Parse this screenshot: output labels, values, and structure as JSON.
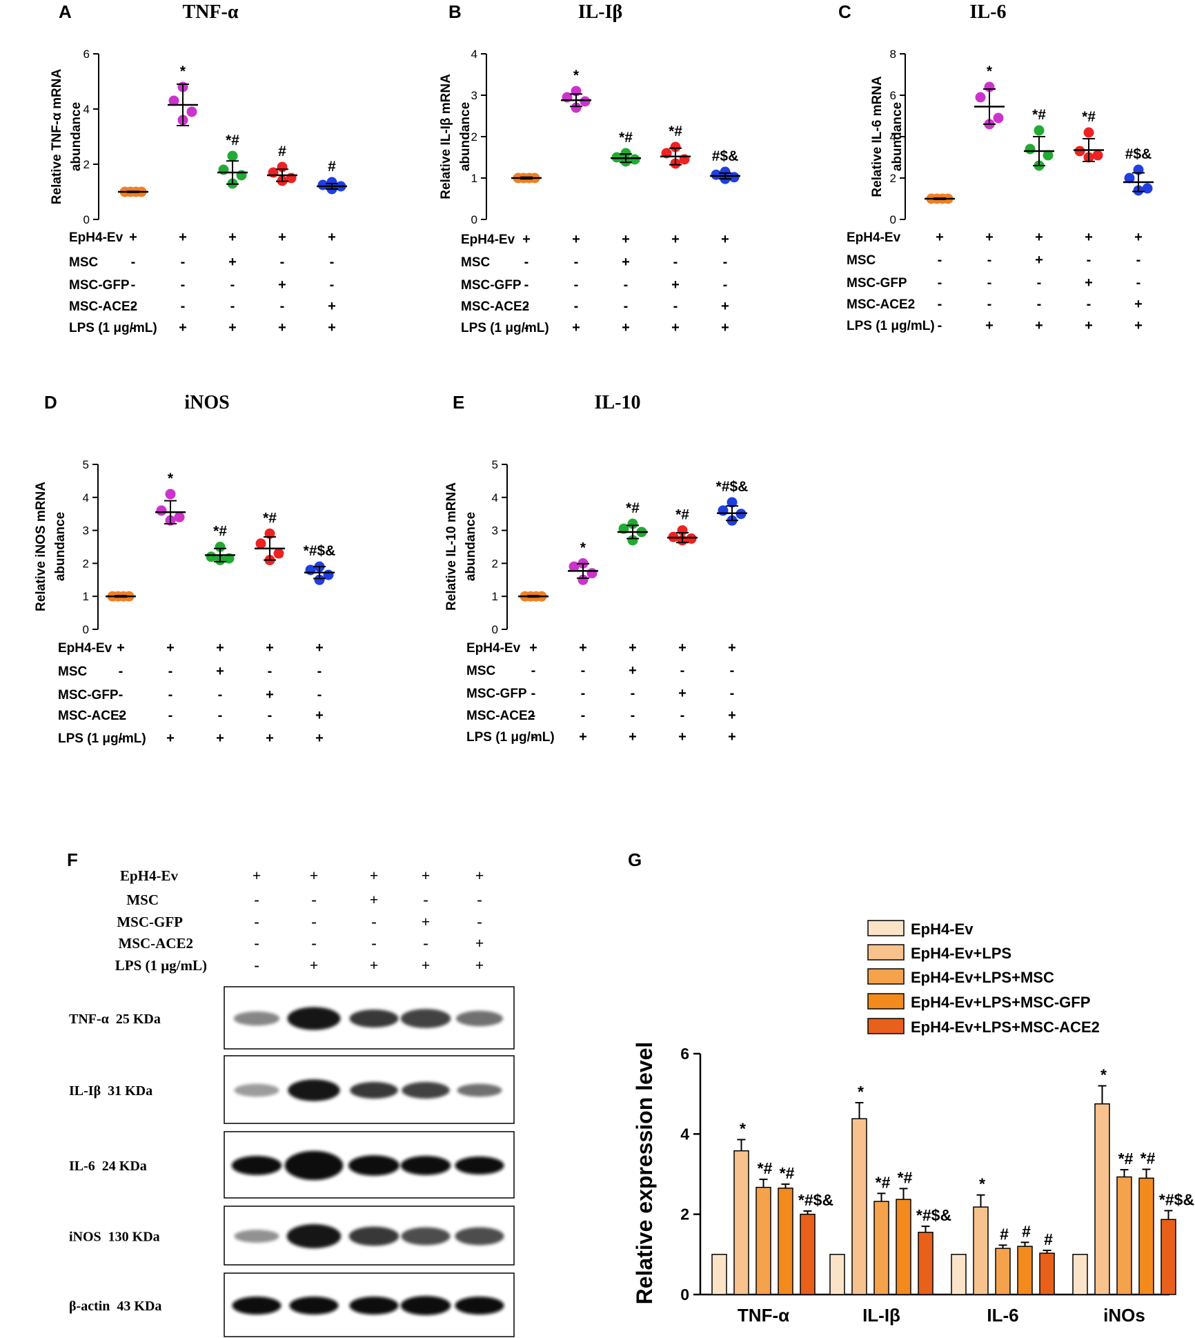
{
  "colors": {
    "ctrl": "#F07F22",
    "lps": "#CC33CC",
    "msc": "#22AA33",
    "gfp": "#EE2222",
    "ace2": "#1F3FE0",
    "bars": [
      "#FBE3C8",
      "#F7C28D",
      "#F5A24C",
      "#F28A1E",
      "#E8601A"
    ]
  },
  "row_labels": [
    "EpH4-Ev",
    "MSC",
    "MSC-GFP",
    "MSC-ACE2",
    "LPS (1 μg/mL)"
  ],
  "conditions": [
    [
      "+",
      "+",
      "+",
      "+",
      "+"
    ],
    [
      "-",
      "-",
      "+",
      "-",
      "-"
    ],
    [
      "-",
      "-",
      "-",
      "+",
      "-"
    ],
    [
      "-",
      "-",
      "-",
      "-",
      "+"
    ],
    [
      "-",
      "+",
      "+",
      "+",
      "+"
    ]
  ],
  "chart_data": [
    {
      "panel": "A",
      "type": "scatter",
      "title": "TNF-α",
      "ylabel": [
        "Relative TNF-α mRNA",
        "abundance"
      ],
      "ylim": [
        0,
        6
      ],
      "yticks": [
        0,
        2,
        4,
        6
      ],
      "groups": [
        {
          "points": [
            1.0,
            1.0,
            1.0,
            1.0
          ],
          "mean": 1.0,
          "sd": 0.02,
          "sig": ""
        },
        {
          "points": [
            4.8,
            4.3,
            3.9,
            3.6
          ],
          "mean": 4.15,
          "sd": 0.75,
          "sig": "*"
        },
        {
          "points": [
            2.3,
            1.8,
            1.6,
            1.3
          ],
          "mean": 1.7,
          "sd": 0.42,
          "sig": "*#"
        },
        {
          "points": [
            1.9,
            1.7,
            1.5,
            1.4
          ],
          "mean": 1.6,
          "sd": 0.22,
          "sig": "#"
        },
        {
          "points": [
            1.35,
            1.25,
            1.2,
            1.1
          ],
          "mean": 1.2,
          "sd": 0.1,
          "sig": "#"
        }
      ]
    },
    {
      "panel": "B",
      "type": "scatter",
      "title": "IL-Iβ",
      "ylabel": [
        "Relative IL-Iβ mRNA",
        "abundance"
      ],
      "ylim": [
        0,
        4
      ],
      "yticks": [
        0,
        1,
        2,
        3,
        4
      ],
      "groups": [
        {
          "points": [
            1.0,
            1.0,
            1.0,
            1.0
          ],
          "mean": 1.0,
          "sd": 0.02,
          "sig": ""
        },
        {
          "points": [
            3.1,
            2.95,
            2.85,
            2.7
          ],
          "mean": 2.88,
          "sd": 0.15,
          "sig": "*"
        },
        {
          "points": [
            1.6,
            1.5,
            1.45,
            1.4
          ],
          "mean": 1.48,
          "sd": 0.1,
          "sig": "*#"
        },
        {
          "points": [
            1.75,
            1.6,
            1.45,
            1.35
          ],
          "mean": 1.52,
          "sd": 0.2,
          "sig": "*#"
        },
        {
          "points": [
            1.15,
            1.08,
            1.02,
            0.98
          ],
          "mean": 1.05,
          "sd": 0.07,
          "sig": "#$&"
        }
      ]
    },
    {
      "panel": "C",
      "type": "scatter",
      "title": "IL-6",
      "ylabel": [
        "Relative IL-6 mRNA",
        "abundance"
      ],
      "ylim": [
        0,
        8
      ],
      "yticks": [
        0,
        2,
        4,
        6,
        8
      ],
      "groups": [
        {
          "points": [
            1.0,
            1.0,
            1.0,
            1.0
          ],
          "mean": 1.0,
          "sd": 0.03,
          "sig": ""
        },
        {
          "points": [
            6.4,
            5.9,
            4.9,
            4.6
          ],
          "mean": 5.45,
          "sd": 0.85,
          "sig": "*"
        },
        {
          "points": [
            4.3,
            3.4,
            3.1,
            2.6
          ],
          "mean": 3.3,
          "sd": 0.7,
          "sig": "*#"
        },
        {
          "points": [
            4.2,
            3.3,
            3.1,
            3.0
          ],
          "mean": 3.35,
          "sd": 0.55,
          "sig": "*#"
        },
        {
          "points": [
            2.4,
            2.0,
            1.5,
            1.4
          ],
          "mean": 1.8,
          "sd": 0.45,
          "sig": "#$&"
        }
      ]
    },
    {
      "panel": "D",
      "type": "scatter",
      "title": "iNOS",
      "ylabel": [
        "Relative iNOS mRNA",
        "abundance"
      ],
      "ylim": [
        0,
        5
      ],
      "yticks": [
        0,
        1,
        2,
        3,
        4,
        5
      ],
      "groups": [
        {
          "points": [
            1.0,
            1.0,
            1.0,
            1.0
          ],
          "mean": 1.0,
          "sd": 0.02,
          "sig": ""
        },
        {
          "points": [
            4.1,
            3.6,
            3.4,
            3.3
          ],
          "mean": 3.55,
          "sd": 0.35,
          "sig": "*"
        },
        {
          "points": [
            2.5,
            2.2,
            2.15,
            2.1
          ],
          "mean": 2.25,
          "sd": 0.2,
          "sig": "*#"
        },
        {
          "points": [
            2.9,
            2.6,
            2.3,
            2.1
          ],
          "mean": 2.45,
          "sd": 0.35,
          "sig": "*#"
        },
        {
          "points": [
            1.9,
            1.8,
            1.65,
            1.5
          ],
          "mean": 1.72,
          "sd": 0.18,
          "sig": "*#$&"
        }
      ]
    },
    {
      "panel": "E",
      "type": "scatter",
      "title": "IL-10",
      "ylabel": [
        "Relative IL-10 mRNA",
        "abundance"
      ],
      "ylim": [
        0,
        5
      ],
      "yticks": [
        0,
        1,
        2,
        3,
        4,
        5
      ],
      "groups": [
        {
          "points": [
            1.0,
            1.0,
            1.0,
            1.0
          ],
          "mean": 1.0,
          "sd": 0.02,
          "sig": ""
        },
        {
          "points": [
            2.0,
            1.9,
            1.7,
            1.5
          ],
          "mean": 1.77,
          "sd": 0.22,
          "sig": "*"
        },
        {
          "points": [
            3.2,
            3.05,
            2.95,
            2.7
          ],
          "mean": 2.95,
          "sd": 0.2,
          "sig": "*#"
        },
        {
          "points": [
            3.0,
            2.8,
            2.75,
            2.7
          ],
          "mean": 2.78,
          "sd": 0.15,
          "sig": "*#"
        },
        {
          "points": [
            3.85,
            3.6,
            3.5,
            3.3
          ],
          "mean": 3.52,
          "sd": 0.22,
          "sig": "*#$&"
        }
      ]
    },
    {
      "panel": "G",
      "type": "bar",
      "ylabel": "Relative expression level",
      "ylim": [
        0,
        6
      ],
      "yticks": [
        0,
        2,
        4,
        6
      ],
      "categories": [
        "TNF-α",
        "IL-Iβ",
        "IL-6",
        "iNOs"
      ],
      "series": [
        {
          "name": "EpH4-Ev",
          "values": [
            1.0,
            1.0,
            1.0,
            1.0
          ],
          "err": [
            0,
            0,
            0,
            0
          ],
          "sig": [
            "",
            "",
            "",
            ""
          ]
        },
        {
          "name": "EpH4-Ev+LPS",
          "values": [
            3.58,
            4.38,
            2.18,
            4.75
          ],
          "err": [
            0.28,
            0.4,
            0.3,
            0.45
          ],
          "sig": [
            "*",
            "*",
            "*",
            "*"
          ]
        },
        {
          "name": "EpH4-Ev+LPS+MSC",
          "values": [
            2.67,
            2.32,
            1.15,
            2.93
          ],
          "err": [
            0.2,
            0.2,
            0.08,
            0.18
          ],
          "sig": [
            "*#",
            "*#",
            "#",
            "*#"
          ]
        },
        {
          "name": "EpH4-Ev+LPS+MSC-GFP",
          "values": [
            2.65,
            2.37,
            1.2,
            2.9
          ],
          "err": [
            0.1,
            0.27,
            0.1,
            0.22
          ],
          "sig": [
            "*#",
            "*#",
            "#",
            "*#"
          ]
        },
        {
          "name": "EpH4-Ev+LPS+MSC-ACE2",
          "values": [
            2.0,
            1.55,
            1.03,
            1.87
          ],
          "err": [
            0.08,
            0.15,
            0.07,
            0.22
          ],
          "sig": [
            "*#$&",
            "*#$&",
            "#",
            "*#$&"
          ]
        }
      ]
    }
  ],
  "western": {
    "panel": "F",
    "header_rows": [
      "EpH4-Ev",
      "MSC",
      "MSC-GFP",
      "MSC-ACE2",
      "LPS (1 μg/mL)"
    ],
    "blots": [
      {
        "label": "TNF-α  25 KDa",
        "intensity": [
          0.45,
          0.95,
          0.8,
          0.75,
          0.55
        ],
        "thickness": [
          0.35,
          0.7,
          0.5,
          0.55,
          0.4
        ]
      },
      {
        "label": "IL-Iβ  31 KDa",
        "intensity": [
          0.35,
          0.95,
          0.8,
          0.75,
          0.55
        ],
        "thickness": [
          0.3,
          0.65,
          0.45,
          0.45,
          0.3
        ]
      },
      {
        "label": "IL-6  24 KDa",
        "intensity": [
          1.0,
          1.0,
          1.0,
          1.0,
          1.0
        ],
        "thickness": [
          0.55,
          0.95,
          0.6,
          0.55,
          0.5
        ]
      },
      {
        "label": "iNOS  130 KDa",
        "intensity": [
          0.4,
          0.95,
          0.8,
          0.7,
          0.7
        ],
        "thickness": [
          0.3,
          0.75,
          0.55,
          0.5,
          0.5
        ]
      },
      {
        "label": "β-actin  43 KDa",
        "intensity": [
          1.0,
          1.0,
          1.0,
          1.0,
          1.0
        ],
        "thickness": [
          0.5,
          0.5,
          0.5,
          0.55,
          0.5
        ]
      }
    ]
  },
  "panel_letters": [
    "A",
    "B",
    "C",
    "D",
    "E",
    "F",
    "G"
  ]
}
